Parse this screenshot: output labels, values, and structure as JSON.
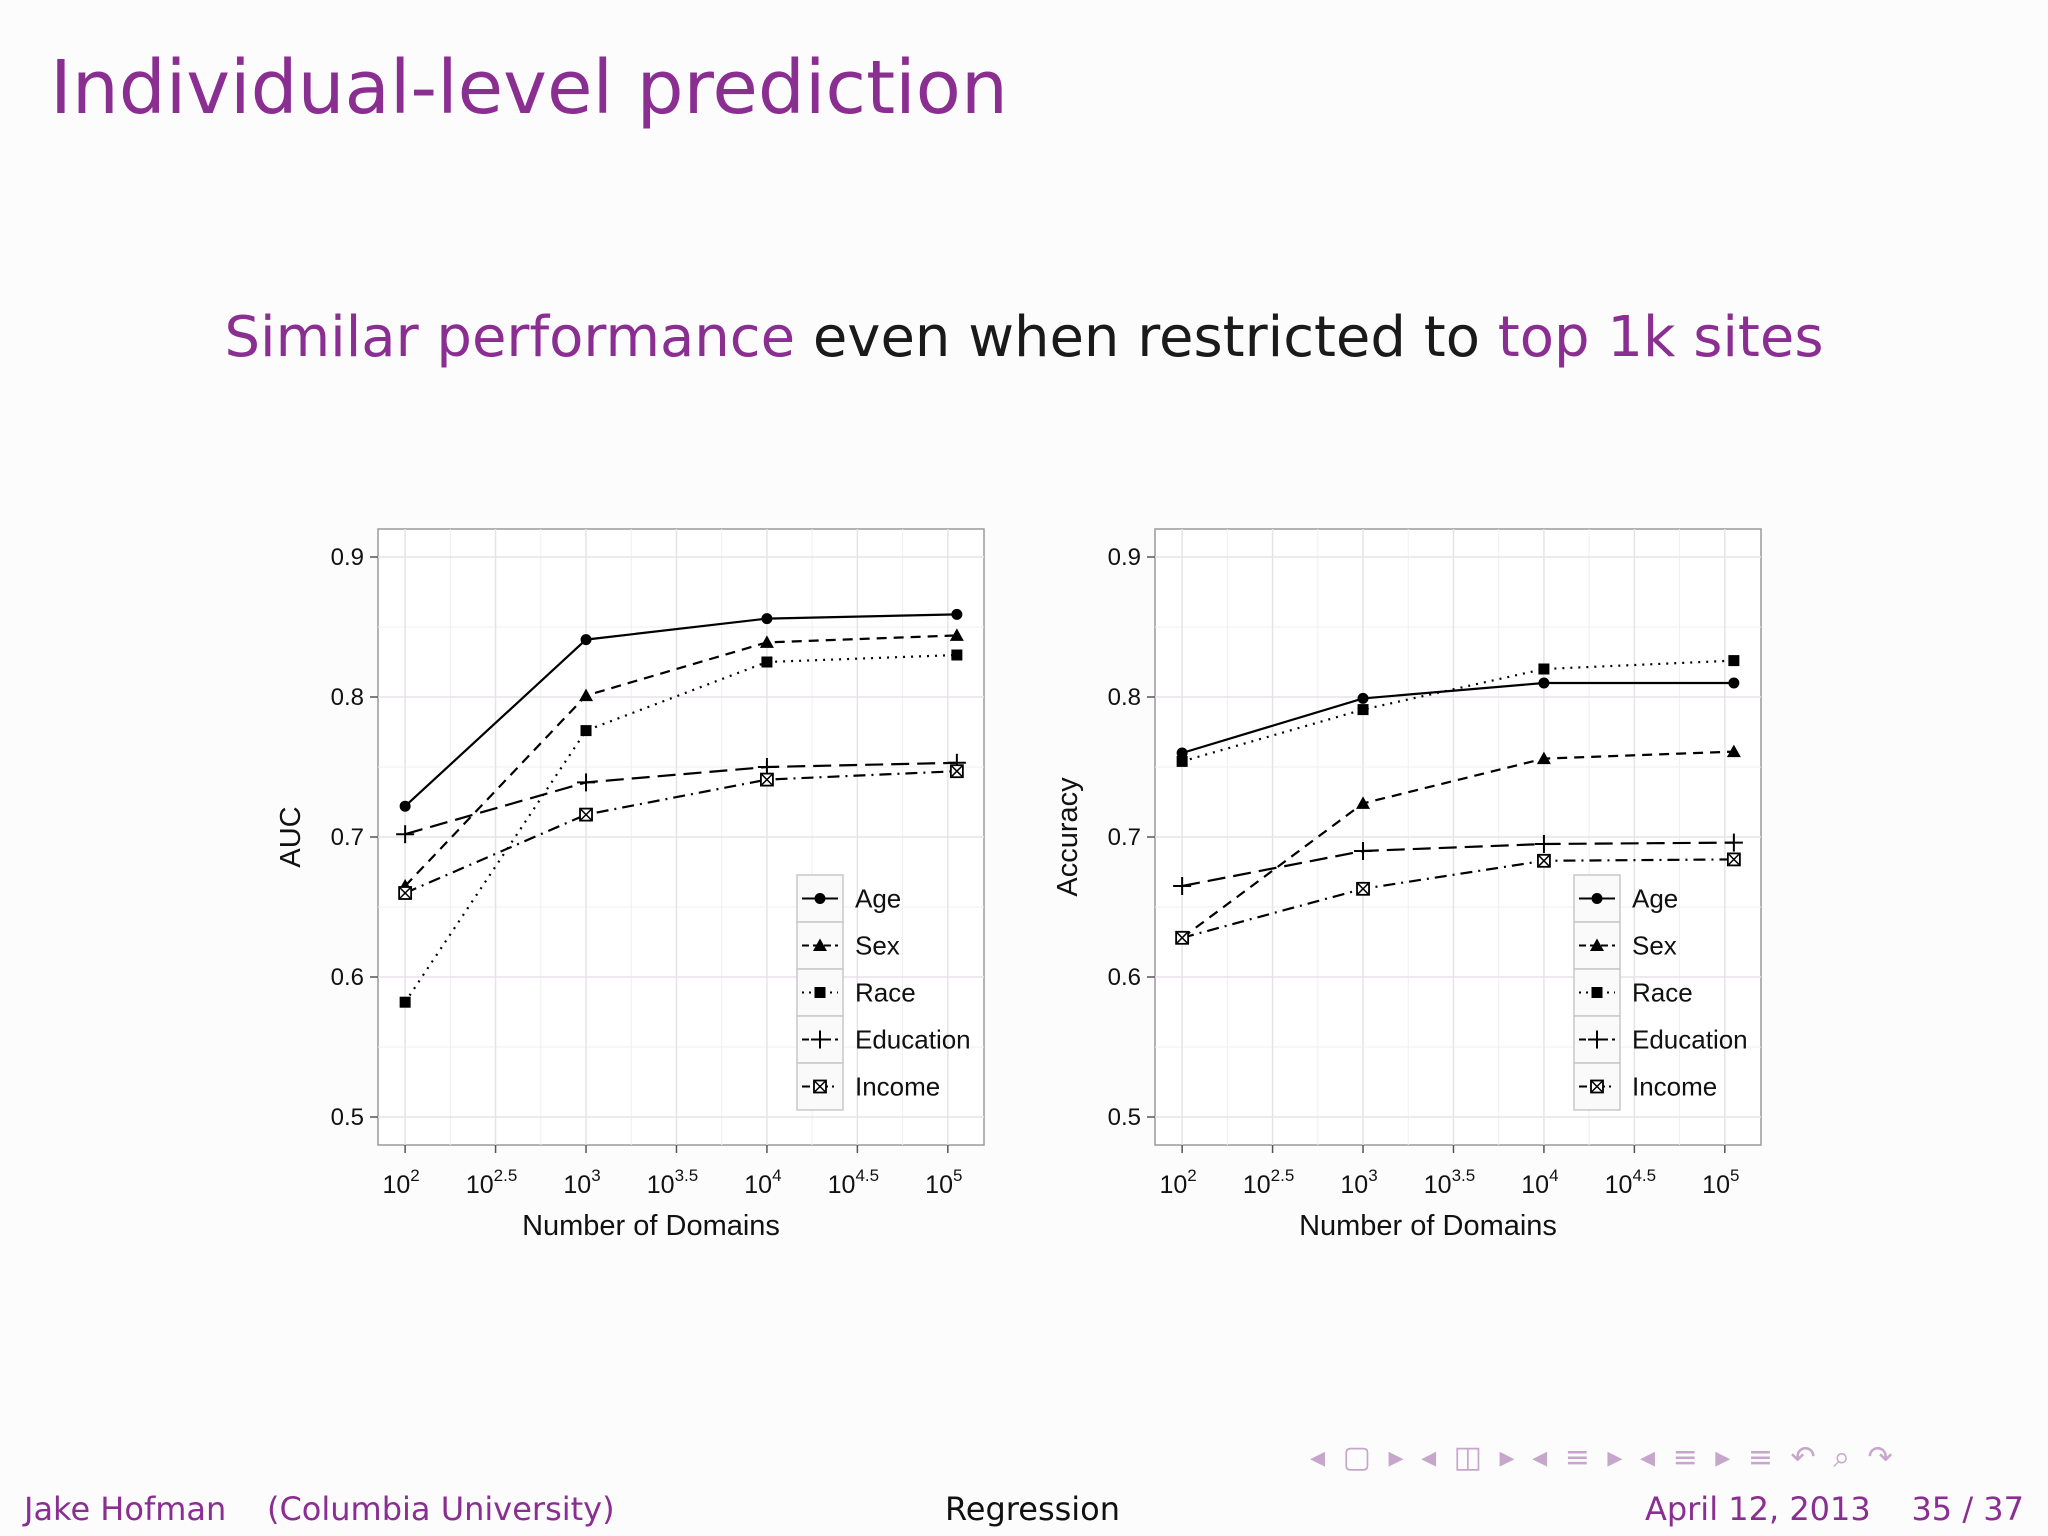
{
  "slide": {
    "title": "Individual-level prediction",
    "subtitle": {
      "part1": "Similar performance",
      "part2": " even when restricted to ",
      "part3": "top 1k sites"
    }
  },
  "footer": {
    "author": "Jake Hofman",
    "affiliation": "(Columbia University)",
    "center": "Regression",
    "date": "April 12, 2013",
    "page": "35 / 37"
  },
  "nav": {
    "symbols": "◂ ▢ ▸  ◂ ◫ ▸  ◂ ≡ ▸  ◂ ≡ ▸    ≡    ↶ ⌕ ↷"
  },
  "colors": {
    "accent": "#8a2e91",
    "text": "#111111",
    "panel_border": "#9a9a9a",
    "grid": "#e7e2e8"
  },
  "chart_data": [
    {
      "type": "line",
      "ylabel": "AUC",
      "xlabel": "Number of Domains",
      "xscale": "log10",
      "xlim": [
        1.85,
        5.2
      ],
      "ylim": [
        0.48,
        0.92
      ],
      "x_ticks": [
        2,
        2.5,
        3,
        3.5,
        4,
        4.5,
        5
      ],
      "x_tick_labels": [
        [
          "10",
          "2"
        ],
        [
          "10",
          "2.5"
        ],
        [
          "10",
          "3"
        ],
        [
          "10",
          "3.5"
        ],
        [
          "10",
          "4"
        ],
        [
          "10",
          "4.5"
        ],
        [
          "10",
          "5"
        ]
      ],
      "y_ticks": [
        0.5,
        0.6,
        0.7,
        0.8,
        0.9
      ],
      "grid": true,
      "legend_position": "bottom-right",
      "x": [
        2,
        3,
        4,
        5.05
      ],
      "series": [
        {
          "name": "Age",
          "values": [
            0.722,
            0.841,
            0.856,
            0.859
          ],
          "style": "solid",
          "marker": "circle"
        },
        {
          "name": "Sex",
          "values": [
            0.665,
            0.801,
            0.839,
            0.844
          ],
          "style": "dashed",
          "marker": "triangle"
        },
        {
          "name": "Race",
          "values": [
            0.582,
            0.776,
            0.825,
            0.83
          ],
          "style": "dotted",
          "marker": "square"
        },
        {
          "name": "Education",
          "values": [
            0.702,
            0.739,
            0.75,
            0.753
          ],
          "style": "longdash",
          "marker": "plus"
        },
        {
          "name": "Income",
          "values": [
            0.66,
            0.716,
            0.741,
            0.747
          ],
          "style": "dotdash",
          "marker": "boxcross"
        }
      ]
    },
    {
      "type": "line",
      "ylabel": "Accuracy",
      "xlabel": "Number of Domains",
      "xscale": "log10",
      "xlim": [
        1.85,
        5.2
      ],
      "ylim": [
        0.48,
        0.92
      ],
      "x_ticks": [
        2,
        2.5,
        3,
        3.5,
        4,
        4.5,
        5
      ],
      "x_tick_labels": [
        [
          "10",
          "2"
        ],
        [
          "10",
          "2.5"
        ],
        [
          "10",
          "3"
        ],
        [
          "10",
          "3.5"
        ],
        [
          "10",
          "4"
        ],
        [
          "10",
          "4.5"
        ],
        [
          "10",
          "5"
        ]
      ],
      "y_ticks": [
        0.5,
        0.6,
        0.7,
        0.8,
        0.9
      ],
      "grid": true,
      "legend_position": "bottom-right",
      "x": [
        2,
        3,
        4,
        5.05
      ],
      "series": [
        {
          "name": "Age",
          "values": [
            0.76,
            0.799,
            0.81,
            0.81
          ],
          "style": "solid",
          "marker": "circle"
        },
        {
          "name": "Sex",
          "values": [
            0.628,
            0.724,
            0.756,
            0.761
          ],
          "style": "dashed",
          "marker": "triangle"
        },
        {
          "name": "Race",
          "values": [
            0.754,
            0.791,
            0.82,
            0.826
          ],
          "style": "dotted",
          "marker": "square"
        },
        {
          "name": "Education",
          "values": [
            0.665,
            0.69,
            0.695,
            0.696
          ],
          "style": "longdash",
          "marker": "plus"
        },
        {
          "name": "Income",
          "values": [
            0.628,
            0.663,
            0.683,
            0.684
          ],
          "style": "dotdash",
          "marker": "boxcross"
        }
      ]
    }
  ]
}
